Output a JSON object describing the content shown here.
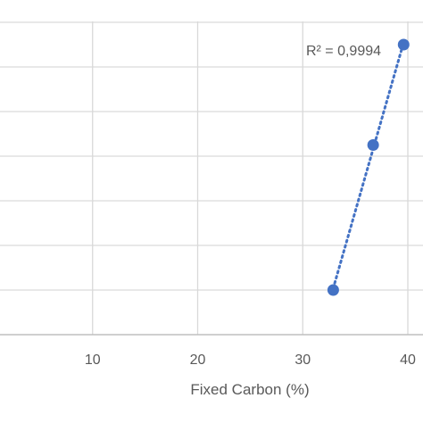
{
  "chart_data": {
    "type": "scatter",
    "xlabel": "Fixed Carbon (%)",
    "ylabel": "",
    "xlim": [
      0,
      40
    ],
    "x_ticks": [
      10,
      20,
      30,
      40
    ],
    "grid": true,
    "series": [
      {
        "x": [
          32.9,
          36.7,
          39.6
        ],
        "y": [
          1.0,
          4.25,
          6.5
        ],
        "color": "#4472c4"
      }
    ],
    "ylim": [
      0,
      7
    ],
    "trendline": {
      "type": "linear",
      "style": "dotted",
      "r2_label": "R² = 0,9994"
    }
  }
}
